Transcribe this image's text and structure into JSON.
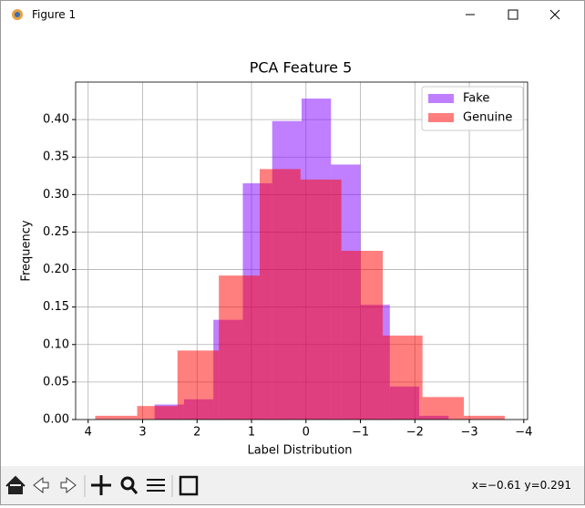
{
  "window": {
    "title": "Figure 1"
  },
  "toolbar": {
    "status": "x=−0.61 y=0.291"
  },
  "chart_data": {
    "type": "histogram",
    "title": "PCA Feature 5",
    "x_label": "Label Distribution",
    "y_label": "Frequency",
    "xlim": [
      4.23,
      -4.07
    ],
    "ylim": [
      0,
      0.45
    ],
    "xticks": [
      4,
      3,
      2,
      1,
      0,
      {
        "value": -1,
        "label": "−1"
      },
      {
        "value": -2,
        "label": "−2"
      },
      {
        "value": -3,
        "label": "−3"
      },
      {
        "value": -4,
        "label": "−4"
      }
    ],
    "yticks": [
      {
        "value": 0,
        "label": "0.00"
      },
      {
        "value": 0.05,
        "label": "0.05"
      },
      {
        "value": 0.1,
        "label": "0.10"
      },
      {
        "value": 0.15,
        "label": "0.15"
      },
      {
        "value": 0.2,
        "label": "0.20"
      },
      {
        "value": 0.25,
        "label": "0.25"
      },
      {
        "value": 0.3,
        "label": "0.30"
      },
      {
        "value": 0.35,
        "label": "0.35"
      },
      {
        "value": 0.4,
        "label": "0.40"
      }
    ],
    "grid": true,
    "legend": "upper right",
    "opacity": 0.5,
    "series": [
      {
        "name": "Fake",
        "color": "#7f00ff",
        "bins": [
          2.78,
          2.24,
          1.7,
          1.16,
          0.62,
          0.08,
          -0.46,
          -1.0,
          -1.54,
          -2.08,
          -2.62
        ],
        "values": [
          0.02,
          0.027,
          0.133,
          0.315,
          0.398,
          0.428,
          0.34,
          0.153,
          0.044,
          0.005
        ]
      },
      {
        "name": "Genuine",
        "color": "#ff0000",
        "bins": [
          3.87,
          3.1,
          2.36,
          1.6,
          0.85,
          0.1,
          -0.65,
          -1.41,
          -2.14,
          -2.9,
          -3.65
        ],
        "values": [
          0.005,
          0.018,
          0.092,
          0.192,
          0.334,
          0.32,
          0.225,
          0.112,
          0.03,
          0.005
        ]
      }
    ]
  }
}
